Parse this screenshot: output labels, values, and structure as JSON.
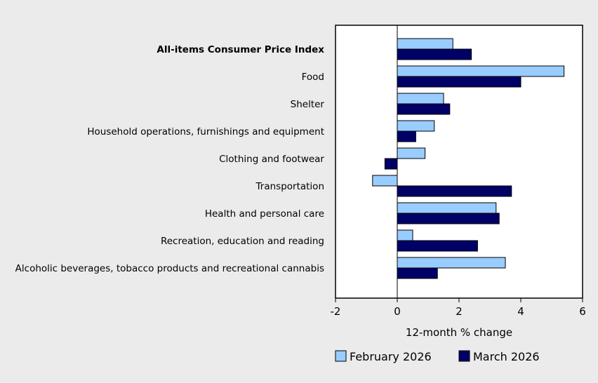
{
  "chart_data": {
    "type": "bar",
    "orientation": "horizontal",
    "title": "",
    "xlabel": "12-month % change",
    "ylabel": "",
    "xlim": [
      -2,
      6
    ],
    "x_ticks": [
      -2,
      0,
      2,
      4,
      6
    ],
    "x_tick_labels": [
      "-2",
      "0",
      "2",
      "4",
      "6"
    ],
    "grid": false,
    "legend_position": "bottom",
    "categories": [
      "All-items Consumer Price Index",
      "Food",
      "Shelter",
      "Household operations, furnishings and equipment",
      "Clothing and footwear",
      "Transportation",
      "Health and personal care",
      "Recreation, education and reading",
      "Alcoholic beverages, tobacco products and recreational cannabis"
    ],
    "bold_categories": [
      "All-items Consumer Price Index"
    ],
    "series": [
      {
        "name": "February 2026",
        "color": "#99ccff",
        "values": [
          1.8,
          5.4,
          1.5,
          1.2,
          0.9,
          -0.8,
          3.2,
          0.5,
          3.5
        ]
      },
      {
        "name": "March 2026",
        "color": "#000066",
        "values": [
          2.4,
          4.0,
          1.7,
          0.6,
          -0.4,
          3.7,
          3.3,
          2.6,
          1.3
        ]
      }
    ]
  }
}
